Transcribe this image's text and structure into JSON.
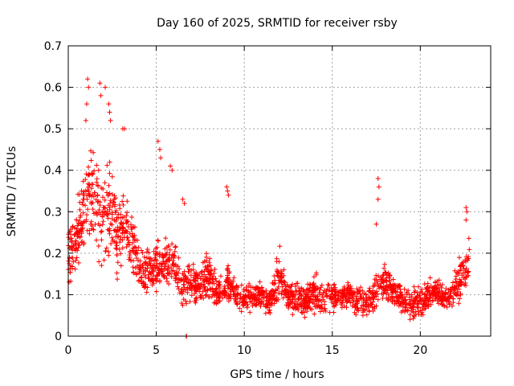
{
  "chart_data": {
    "type": "scatter",
    "title": "Day 160 of 2025, SRMTID for receiver rsby",
    "xlabel": "GPS time / hours",
    "ylabel": "SRMTID / TECUs",
    "xlim": [
      0,
      24
    ],
    "ylim": [
      0,
      0.7
    ],
    "xticks": [
      0,
      5,
      10,
      15,
      20
    ],
    "xtick_labels": [
      "0",
      "5",
      "10",
      "15",
      "20"
    ],
    "yticks": [
      0,
      0.1,
      0.2,
      0.3,
      0.4,
      0.5,
      0.6,
      0.7
    ],
    "ytick_labels": [
      "0",
      "0.1",
      "0.2",
      "0.3",
      "0.4",
      "0.5",
      "0.6",
      "0.7"
    ],
    "grid": true,
    "marker": "+",
    "color": "#ff0000",
    "series": [
      {
        "name": "SRMTID",
        "envelope_hours": [
          0.0,
          0.5,
          1.0,
          1.3,
          1.7,
          2.0,
          2.4,
          2.8,
          3.2,
          3.6,
          4.0,
          4.5,
          5.0,
          5.5,
          6.0,
          6.5,
          7.0,
          7.5,
          8.0,
          8.5,
          9.0,
          9.5,
          10.0,
          10.5,
          11.0,
          11.5,
          12.0,
          12.5,
          13.0,
          13.5,
          14.0,
          14.5,
          15.0,
          15.5,
          16.0,
          16.5,
          17.0,
          17.5,
          18.0,
          18.5,
          19.0,
          19.5,
          20.0,
          20.5,
          21.0,
          21.5,
          22.0,
          22.5,
          22.8
        ],
        "envelope_median": [
          0.19,
          0.24,
          0.32,
          0.34,
          0.3,
          0.27,
          0.32,
          0.25,
          0.27,
          0.22,
          0.17,
          0.15,
          0.17,
          0.18,
          0.17,
          0.12,
          0.13,
          0.12,
          0.14,
          0.1,
          0.13,
          0.1,
          0.09,
          0.1,
          0.09,
          0.08,
          0.15,
          0.09,
          0.1,
          0.08,
          0.11,
          0.08,
          0.1,
          0.09,
          0.1,
          0.08,
          0.08,
          0.11,
          0.14,
          0.11,
          0.09,
          0.08,
          0.08,
          0.1,
          0.11,
          0.09,
          0.11,
          0.16,
          0.19
        ],
        "envelope_spread": [
          0.07,
          0.07,
          0.1,
          0.12,
          0.1,
          0.09,
          0.1,
          0.09,
          0.07,
          0.06,
          0.05,
          0.05,
          0.05,
          0.05,
          0.05,
          0.04,
          0.04,
          0.04,
          0.05,
          0.03,
          0.04,
          0.03,
          0.03,
          0.03,
          0.03,
          0.03,
          0.05,
          0.03,
          0.04,
          0.03,
          0.04,
          0.03,
          0.03,
          0.03,
          0.03,
          0.03,
          0.03,
          0.04,
          0.05,
          0.03,
          0.03,
          0.03,
          0.03,
          0.03,
          0.03,
          0.03,
          0.04,
          0.05,
          0.05
        ],
        "spikes": [
          {
            "x": 1.1,
            "y": 0.62
          },
          {
            "x": 1.15,
            "y": 0.6
          },
          {
            "x": 1.05,
            "y": 0.56
          },
          {
            "x": 1.0,
            "y": 0.52
          },
          {
            "x": 1.8,
            "y": 0.61
          },
          {
            "x": 1.85,
            "y": 0.58
          },
          {
            "x": 2.1,
            "y": 0.6
          },
          {
            "x": 2.3,
            "y": 0.56
          },
          {
            "x": 2.35,
            "y": 0.54
          },
          {
            "x": 2.4,
            "y": 0.52
          },
          {
            "x": 3.1,
            "y": 0.5
          },
          {
            "x": 3.2,
            "y": 0.5
          },
          {
            "x": 5.1,
            "y": 0.47
          },
          {
            "x": 5.2,
            "y": 0.45
          },
          {
            "x": 5.25,
            "y": 0.43
          },
          {
            "x": 5.8,
            "y": 0.41
          },
          {
            "x": 5.9,
            "y": 0.4
          },
          {
            "x": 6.5,
            "y": 0.33
          },
          {
            "x": 6.6,
            "y": 0.32
          },
          {
            "x": 9.0,
            "y": 0.36
          },
          {
            "x": 9.05,
            "y": 0.35
          },
          {
            "x": 9.1,
            "y": 0.34
          },
          {
            "x": 17.6,
            "y": 0.38
          },
          {
            "x": 17.65,
            "y": 0.36
          },
          {
            "x": 17.6,
            "y": 0.33
          },
          {
            "x": 17.5,
            "y": 0.27
          },
          {
            "x": 22.6,
            "y": 0.31
          },
          {
            "x": 22.65,
            "y": 0.3
          },
          {
            "x": 22.6,
            "y": 0.28
          },
          {
            "x": 6.7,
            "y": 0.0
          },
          {
            "x": 6.72,
            "y": 0.0
          }
        ],
        "points_per_hour": 90
      }
    ]
  }
}
